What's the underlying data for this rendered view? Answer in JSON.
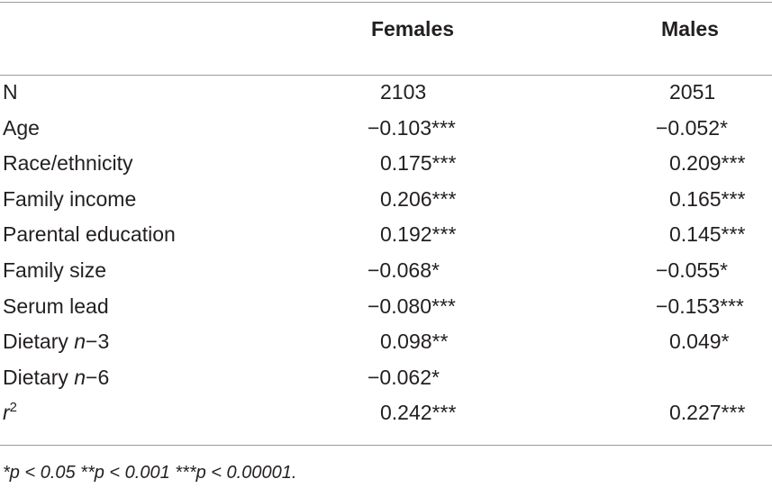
{
  "table": {
    "columns": [
      "Females",
      "Males"
    ],
    "rows": [
      {
        "label": "N",
        "values": [
          "2103",
          "2051"
        ]
      },
      {
        "label": "Age",
        "values": [
          "−0.103***",
          "−0.052*"
        ]
      },
      {
        "label": "Race/ethnicity",
        "values": [
          "0.175***",
          "0.209***"
        ]
      },
      {
        "label": "Family income",
        "values": [
          "0.206***",
          "0.165***"
        ]
      },
      {
        "label": "Parental education",
        "values": [
          "0.192***",
          "0.145***"
        ]
      },
      {
        "label": "Family size",
        "values": [
          "−0.068*",
          "−0.055*"
        ]
      },
      {
        "label": "Serum lead",
        "values": [
          "−0.080***",
          "−0.153***"
        ]
      },
      {
        "label": {
          "pre": "Dietary ",
          "em": "n",
          "post": "−3"
        },
        "values": [
          "0.098**",
          "0.049*"
        ]
      },
      {
        "label": {
          "pre": "Dietary ",
          "em": "n",
          "post": "−6"
        },
        "values": [
          "−0.062*",
          null
        ]
      },
      {
        "label": {
          "em": "r",
          "sup": "2"
        },
        "values": [
          "0.242***",
          "0.227***"
        ]
      }
    ],
    "footnote": "*p < 0.05 **p < 0.001 ***p < 0.00001."
  }
}
